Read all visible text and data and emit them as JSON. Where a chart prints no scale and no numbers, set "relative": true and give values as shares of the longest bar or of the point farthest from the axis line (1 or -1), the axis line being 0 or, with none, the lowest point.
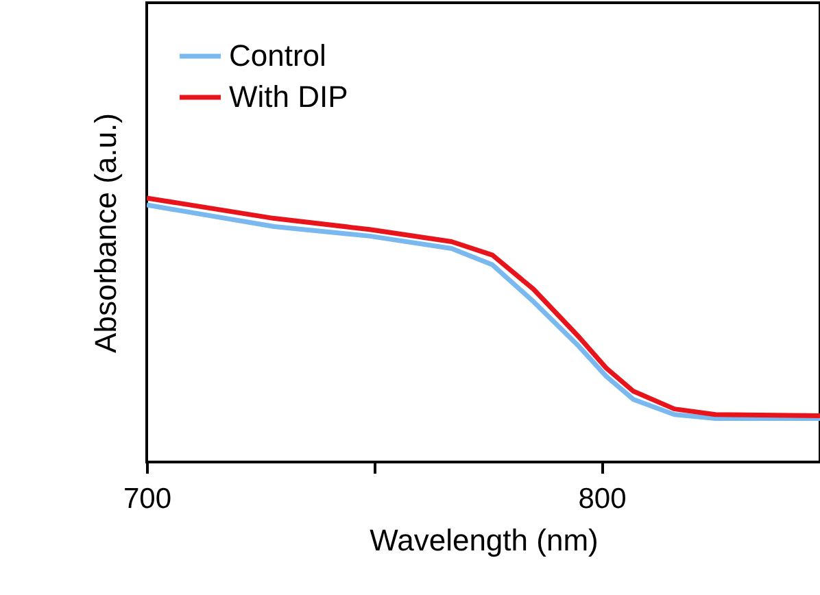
{
  "chart_data": {
    "type": "line",
    "xlabel": "Wavelength (nm)",
    "ylabel": "Absorbance (a.u.)",
    "relative": true,
    "x": [
      700,
      728,
      749,
      767,
      776,
      785,
      795,
      801,
      807,
      816,
      825,
      848
    ],
    "xlim": [
      700,
      848
    ],
    "xticks": [
      700,
      {
        "value": 750,
        "label": null
      },
      800
    ],
    "tick_labels": "x",
    "grid": false,
    "legend": "top left",
    "marker": "none",
    "line_style": "solid",
    "series": [
      {
        "name": "Control",
        "color": "#7ab8f0",
        "values": [
          0.974,
          0.892,
          0.856,
          0.809,
          0.747,
          0.608,
          0.438,
          0.325,
          0.237,
          0.18,
          0.165,
          0.165
        ]
      },
      {
        "name": "With DIP",
        "color": "#e8141b",
        "values": [
          1,
          0.923,
          0.881,
          0.835,
          0.784,
          0.655,
          0.474,
          0.356,
          0.268,
          0.201,
          0.18,
          0.175
        ]
      }
    ]
  }
}
